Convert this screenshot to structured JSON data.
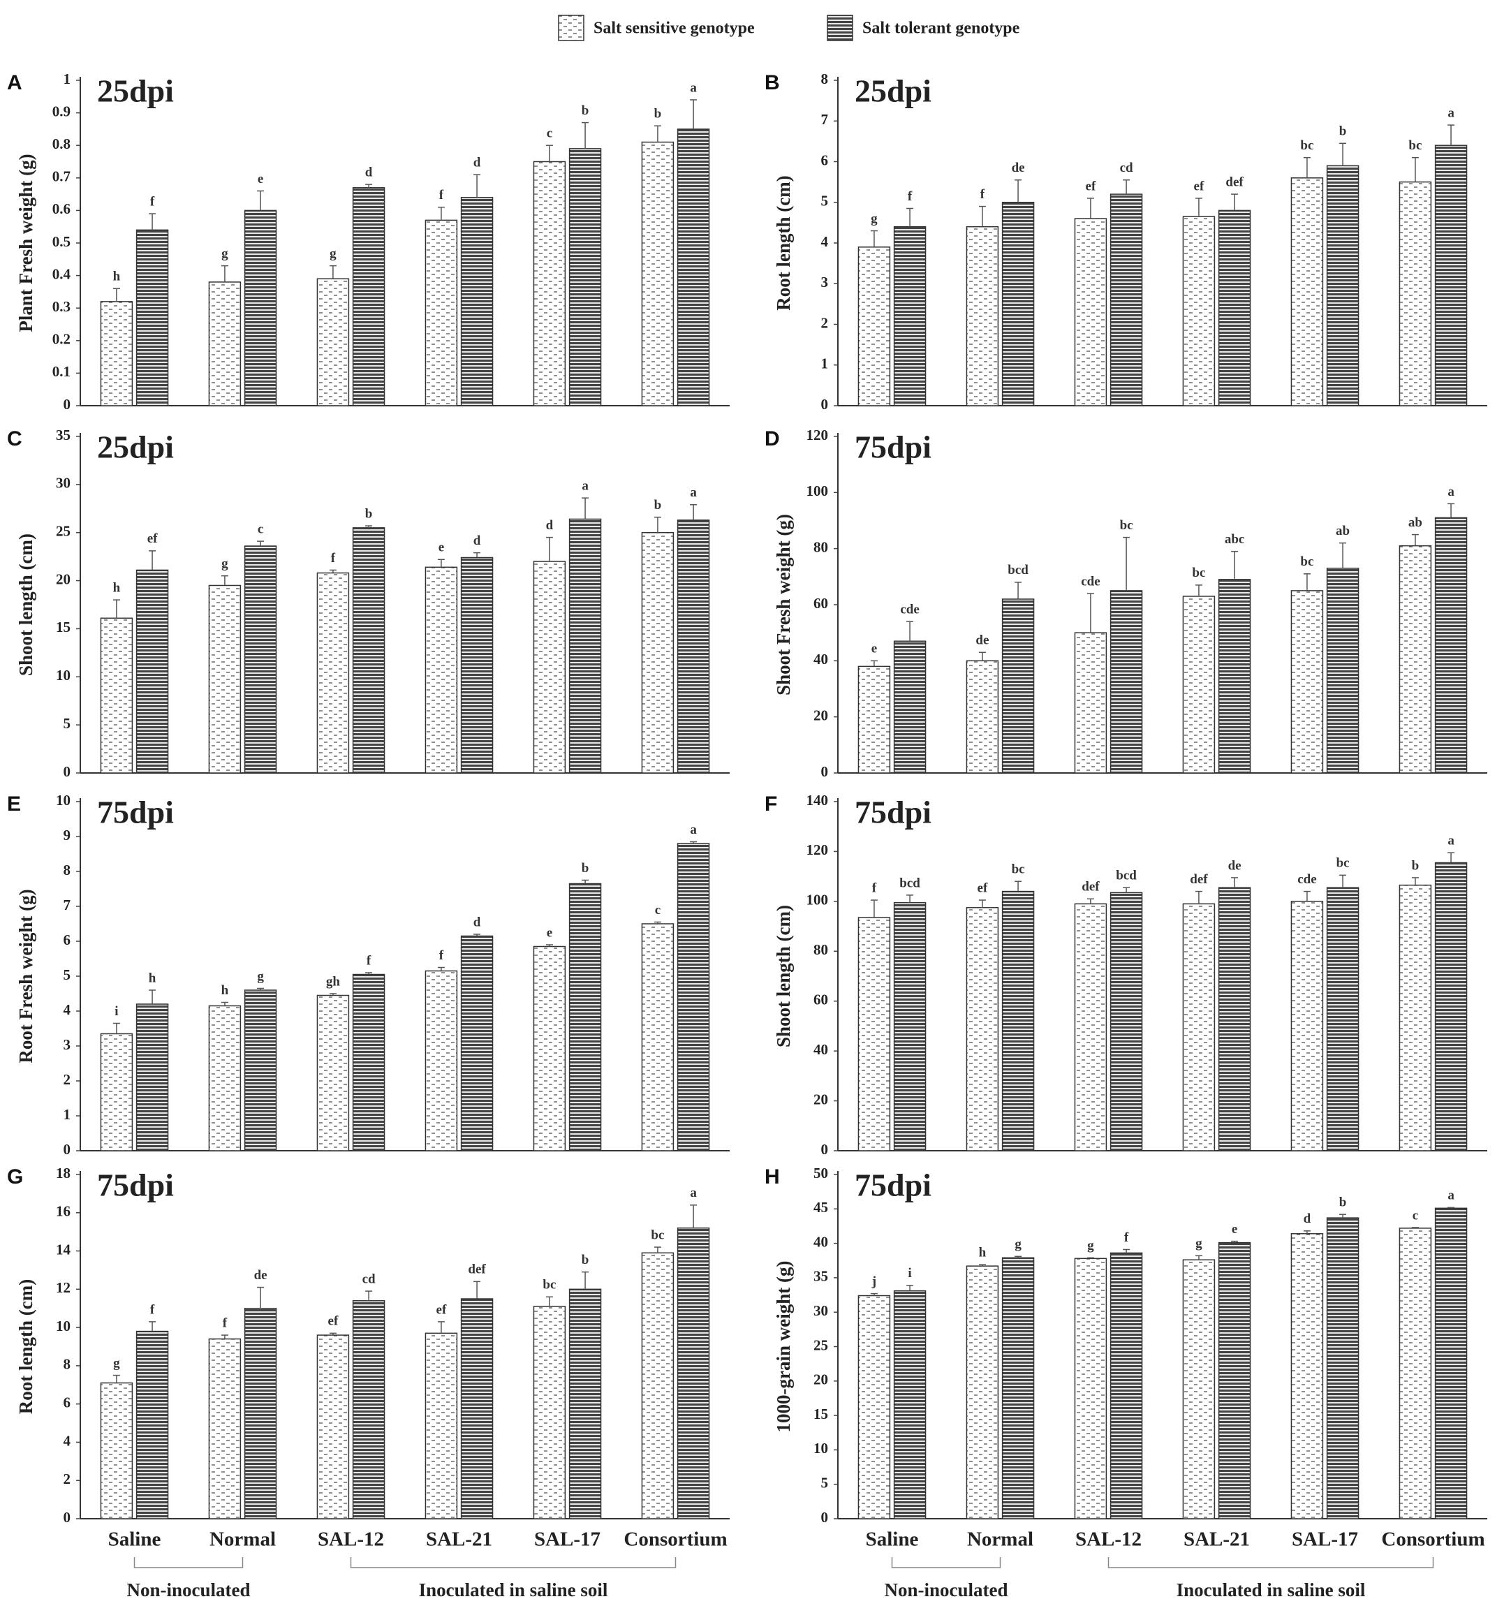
{
  "legend": [
    {
      "name": "Salt sensitive genotype",
      "pattern": "dash"
    },
    {
      "name": "Salt tolerant genotype",
      "pattern": "stripe"
    }
  ],
  "chart_data": [
    {
      "type": "bar",
      "panel": "A",
      "title": "25dpi",
      "ylabel": "Plant Fresh weight (g)",
      "ylim": [
        0,
        1
      ],
      "yticks": [
        0,
        0.1,
        0.2,
        0.3,
        0.4,
        0.5,
        0.6,
        0.7,
        0.8,
        0.9,
        1
      ],
      "series": [
        {
          "pattern": "dash",
          "values": [
            0.32,
            0.38,
            0.39,
            0.57,
            0.75,
            0.81
          ],
          "errors": [
            0.04,
            0.05,
            0.04,
            0.04,
            0.05,
            0.05
          ],
          "letters": [
            "h",
            "g",
            "g",
            "f",
            "c",
            "b"
          ]
        },
        {
          "pattern": "stripe",
          "values": [
            0.54,
            0.6,
            0.67,
            0.64,
            0.79,
            0.85
          ],
          "errors": [
            0.05,
            0.06,
            0.01,
            0.07,
            0.08,
            0.09
          ],
          "letters": [
            "f",
            "e",
            "d",
            "d",
            "b",
            "a"
          ]
        }
      ]
    },
    {
      "type": "bar",
      "panel": "B",
      "title": "25dpi",
      "ylabel": "Root length (cm)",
      "ylim": [
        0,
        8
      ],
      "yticks": [
        0,
        1,
        2,
        3,
        4,
        5,
        6,
        7,
        8
      ],
      "series": [
        {
          "pattern": "dash",
          "values": [
            3.9,
            4.4,
            4.6,
            4.65,
            5.6,
            5.5
          ],
          "errors": [
            0.4,
            0.5,
            0.5,
            0.45,
            0.5,
            0.6
          ],
          "letters": [
            "g",
            "f",
            "ef",
            "ef",
            "bc",
            "bc"
          ]
        },
        {
          "pattern": "stripe",
          "values": [
            4.4,
            5.0,
            5.2,
            4.8,
            5.9,
            6.4
          ],
          "errors": [
            0.45,
            0.55,
            0.35,
            0.4,
            0.55,
            0.5
          ],
          "letters": [
            "f",
            "de",
            "cd",
            "def",
            "b",
            "a"
          ]
        }
      ]
    },
    {
      "type": "bar",
      "panel": "C",
      "title": "25dpi",
      "ylabel": "Shoot length (cm)",
      "ylim": [
        0,
        35
      ],
      "yticks": [
        0,
        5,
        10,
        15,
        20,
        25,
        30,
        35
      ],
      "series": [
        {
          "pattern": "dash",
          "values": [
            16.1,
            19.5,
            20.8,
            21.4,
            22.0,
            25.0
          ],
          "errors": [
            1.9,
            1.0,
            0.3,
            0.8,
            2.5,
            1.6
          ],
          "letters": [
            "h",
            "g",
            "f",
            "e",
            "d",
            "b"
          ]
        },
        {
          "pattern": "stripe",
          "values": [
            21.1,
            23.6,
            25.5,
            22.4,
            26.4,
            26.3
          ],
          "errors": [
            2.0,
            0.5,
            0.2,
            0.5,
            2.2,
            1.6
          ],
          "letters": [
            "ef",
            "c",
            "b",
            "d",
            "a",
            "a"
          ]
        }
      ]
    },
    {
      "type": "bar",
      "panel": "D",
      "title": "75dpi",
      "ylabel": "Shoot Fresh weight (g)",
      "ylim": [
        0,
        120
      ],
      "yticks": [
        0,
        20,
        40,
        60,
        80,
        100,
        120
      ],
      "series": [
        {
          "pattern": "dash",
          "values": [
            38,
            40,
            50,
            63,
            65,
            81
          ],
          "errors": [
            2,
            3,
            14,
            4,
            6,
            4
          ],
          "letters": [
            "e",
            "de",
            "cde",
            "bc",
            "bc",
            "ab"
          ]
        },
        {
          "pattern": "stripe",
          "values": [
            47,
            62,
            65,
            69,
            73,
            91
          ],
          "errors": [
            7,
            6,
            19,
            10,
            9,
            5
          ],
          "letters": [
            "cde",
            "bcd",
            "bc",
            "abc",
            "ab",
            "a"
          ]
        }
      ]
    },
    {
      "type": "bar",
      "panel": "E",
      "title": "75dpi",
      "ylabel": "Root Fresh weight (g)",
      "ylim": [
        0,
        10
      ],
      "yticks": [
        0,
        1,
        2,
        3,
        4,
        5,
        6,
        7,
        8,
        9,
        10
      ],
      "series": [
        {
          "pattern": "dash",
          "values": [
            3.35,
            4.15,
            4.45,
            5.15,
            5.85,
            6.5
          ],
          "errors": [
            0.3,
            0.1,
            0.05,
            0.1,
            0.05,
            0.05
          ],
          "letters": [
            "i",
            "h",
            "gh",
            "f",
            "e",
            "c"
          ]
        },
        {
          "pattern": "stripe",
          "values": [
            4.2,
            4.6,
            5.05,
            6.15,
            7.65,
            8.8
          ],
          "errors": [
            0.4,
            0.05,
            0.05,
            0.05,
            0.1,
            0.05
          ],
          "letters": [
            "h",
            "g",
            "f",
            "d",
            "b",
            "a"
          ]
        }
      ]
    },
    {
      "type": "bar",
      "panel": "F",
      "title": "75dpi",
      "ylabel": "Shoot length (cm)",
      "ylim": [
        0,
        140
      ],
      "yticks": [
        0,
        20,
        40,
        60,
        80,
        100,
        120,
        140
      ],
      "series": [
        {
          "pattern": "dash",
          "values": [
            93.5,
            97.5,
            99,
            99,
            100,
            106.5
          ],
          "errors": [
            7,
            3,
            2,
            5,
            4,
            3
          ],
          "letters": [
            "f",
            "ef",
            "def",
            "def",
            "cde",
            "b"
          ]
        },
        {
          "pattern": "stripe",
          "values": [
            99.5,
            104,
            103.5,
            105.5,
            105.5,
            115.5
          ],
          "errors": [
            3,
            4,
            2,
            4,
            5,
            4
          ],
          "letters": [
            "bcd",
            "bc",
            "bcd",
            "de",
            "bc",
            "a"
          ]
        }
      ]
    },
    {
      "type": "bar",
      "panel": "G",
      "title": "75dpi",
      "ylabel": "Root length (cm)",
      "ylim": [
        0,
        18
      ],
      "yticks": [
        0,
        2,
        4,
        6,
        8,
        10,
        12,
        14,
        16,
        18
      ],
      "categories": [
        "Saline",
        "Normal",
        "SAL-12",
        "SAL-21",
        "SAL-17",
        "Consortium"
      ],
      "group_labels": [
        "Non-inoculated",
        "Inoculated in saline soil"
      ],
      "series": [
        {
          "pattern": "dash",
          "values": [
            7.1,
            9.4,
            9.6,
            9.7,
            11.1,
            13.9
          ],
          "errors": [
            0.4,
            0.2,
            0.1,
            0.6,
            0.5,
            0.3
          ],
          "letters": [
            "g",
            "f",
            "ef",
            "ef",
            "bc",
            "bc"
          ]
        },
        {
          "pattern": "stripe",
          "values": [
            9.8,
            11.0,
            11.4,
            11.5,
            12.0,
            15.2
          ],
          "errors": [
            0.5,
            1.1,
            0.5,
            0.9,
            0.9,
            1.2
          ],
          "letters": [
            "f",
            "de",
            "cd",
            "def",
            "b",
            "a"
          ]
        }
      ]
    },
    {
      "type": "bar",
      "panel": "H",
      "title": "75dpi",
      "ylabel": "1000-grain weight (g)",
      "ylim": [
        0,
        50
      ],
      "yticks": [
        0,
        5,
        10,
        15,
        20,
        25,
        30,
        35,
        40,
        45,
        50
      ],
      "categories": [
        "Saline",
        "Normal",
        "SAL-12",
        "SAL-21",
        "SAL-17",
        "Consortium"
      ],
      "group_labels": [
        "Non-inoculated",
        "Inoculated in saline soil"
      ],
      "series": [
        {
          "pattern": "dash",
          "values": [
            32.4,
            36.7,
            37.8,
            37.6,
            41.4,
            42.2
          ],
          "errors": [
            0.3,
            0.2,
            0.1,
            0.6,
            0.4,
            0.1
          ],
          "letters": [
            "j",
            "h",
            "g",
            "g",
            "d",
            "c"
          ]
        },
        {
          "pattern": "stripe",
          "values": [
            33.1,
            37.9,
            38.6,
            40.1,
            43.7,
            45.1
          ],
          "errors": [
            0.8,
            0.2,
            0.5,
            0.2,
            0.5,
            0.1
          ],
          "letters": [
            "i",
            "g",
            "f",
            "e",
            "b",
            "a"
          ]
        }
      ]
    }
  ]
}
